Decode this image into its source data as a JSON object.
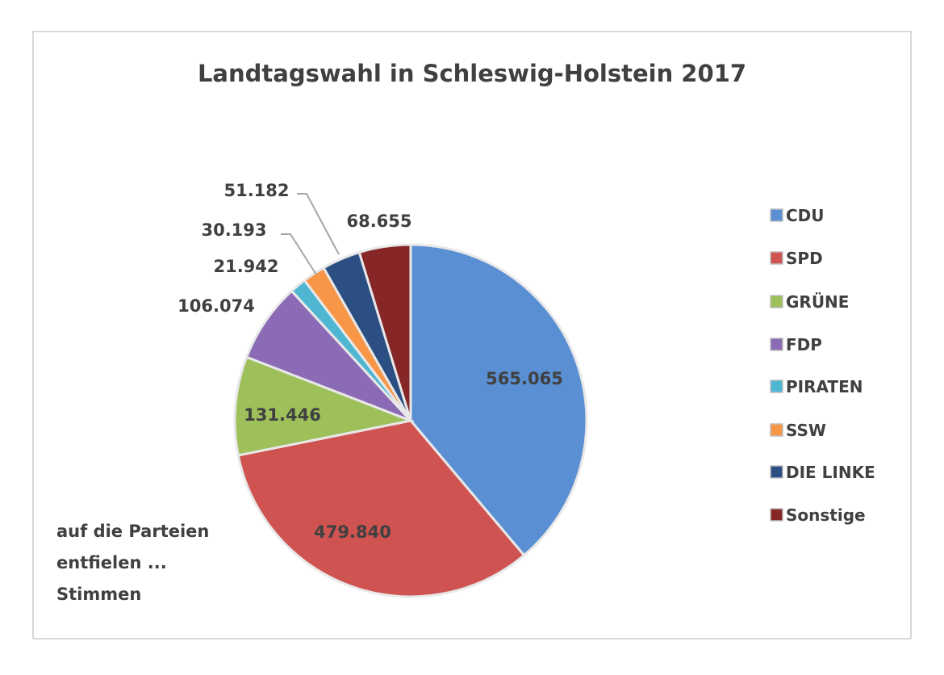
{
  "chart_data": {
    "type": "pie",
    "title": "Landtagswahl in Schleswig-Holstein 2017",
    "annotation": [
      "auf die Parteien",
      "entfielen ...",
      "Stimmen"
    ],
    "legend_position": "right",
    "start_angle": "12 o'clock, clockwise",
    "slices": [
      {
        "name": "CDU",
        "value": 565065,
        "label": "565.065",
        "color": "#5a8fd3"
      },
      {
        "name": "SPD",
        "value": 479840,
        "label": "479.840",
        "color": "#cf5350"
      },
      {
        "name": "GRÜNE",
        "value": 131446,
        "label": "131.446",
        "color": "#9dc05a"
      },
      {
        "name": "FDP",
        "value": 106074,
        "label": "106.074",
        "color": "#8b6bb5"
      },
      {
        "name": "PIRATEN",
        "value": 21942,
        "label": "21.942",
        "color": "#4fb6d2"
      },
      {
        "name": "SSW",
        "value": 30193,
        "label": "30.193",
        "color": "#f79646"
      },
      {
        "name": "DIE LINKE",
        "value": 51182,
        "label": "51.182",
        "color": "#2b4f82"
      },
      {
        "name": "Sonstige",
        "value": 68655,
        "label": "68.655",
        "color": "#862626"
      }
    ]
  }
}
